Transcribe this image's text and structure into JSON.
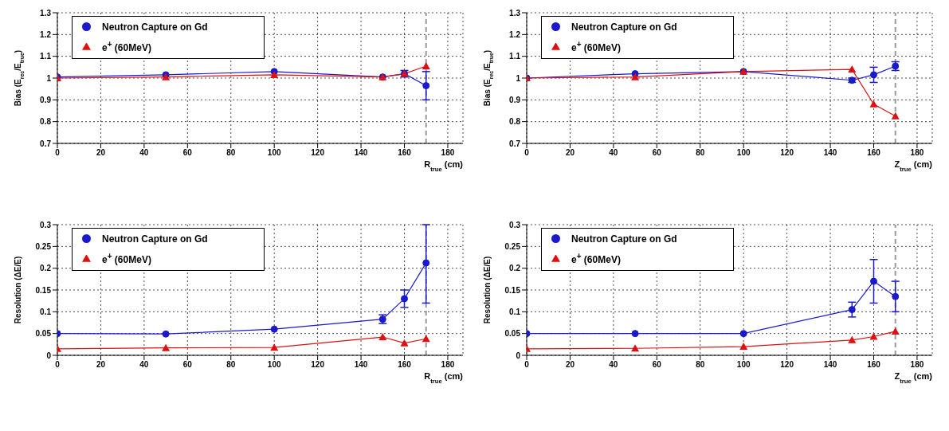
{
  "chart_data": [
    {
      "type": "line",
      "xlabel": "R$_{true}$ (cm)",
      "ylabel": "Bias (E$_{rec}$/E$_{true}$)",
      "x": [
        0,
        50,
        100,
        150,
        160,
        170
      ],
      "xlim": [
        0,
        187
      ],
      "xticks": [
        0,
        20,
        40,
        60,
        80,
        100,
        120,
        140,
        160,
        180
      ],
      "ylim": [
        0.7,
        1.3
      ],
      "yticks": [
        0.7,
        0.8,
        0.9,
        1,
        1.1,
        1.2,
        1.3
      ],
      "grid": true,
      "legend": "top left",
      "line_style": "solid",
      "ref_lines": [
        {
          "axis": "x",
          "value": 170,
          "color": "#999999",
          "line_style": "dashed"
        }
      ],
      "series": [
        {
          "name": "Neutron Capture on Gd",
          "color": "#1a1acc",
          "marker": "circle",
          "values": [
            1.005,
            1.015,
            1.03,
            1.005,
            1.02,
            0.965
          ],
          "errors": [
            null,
            null,
            null,
            null,
            0.015,
            [
              0.9,
              1.03
            ]
          ]
        },
        {
          "name": "e$^{+}$ (60MeV)",
          "color": "#dd1111",
          "marker": "triangle",
          "values": [
            1.0,
            1.005,
            1.015,
            1.005,
            1.02,
            1.055
          ]
        }
      ]
    },
    {
      "type": "line",
      "xlabel": "Z$_{true}$ (cm)",
      "ylabel": "Bias (E$_{rec}$/E$_{true}$)",
      "x": [
        0,
        50,
        100,
        150,
        160,
        170
      ],
      "xlim": [
        0,
        187
      ],
      "xticks": [
        0,
        20,
        40,
        60,
        80,
        100,
        120,
        140,
        160,
        180
      ],
      "ylim": [
        0.7,
        1.3
      ],
      "yticks": [
        0.7,
        0.8,
        0.9,
        1,
        1.1,
        1.2,
        1.3
      ],
      "grid": true,
      "legend": "top left",
      "line_style": "solid",
      "ref_lines": [
        {
          "axis": "x",
          "value": 170,
          "color": "#999999",
          "line_style": "dashed"
        }
      ],
      "series": [
        {
          "name": "Neutron Capture on Gd",
          "color": "#1a1acc",
          "marker": "circle",
          "values": [
            1.0,
            1.02,
            1.03,
            0.99,
            1.015,
            1.055
          ],
          "errors": [
            null,
            null,
            null,
            0.01,
            0.035,
            0.02
          ]
        },
        {
          "name": "e$^{+}$ (60MeV)",
          "color": "#dd1111",
          "marker": "triangle",
          "values": [
            1.0,
            1.005,
            1.03,
            1.04,
            0.88,
            0.825
          ]
        }
      ]
    },
    {
      "type": "line",
      "xlabel": "R$_{true}$ (cm)",
      "ylabel": "Resolution (ΔE/E)",
      "x": [
        0,
        50,
        100,
        150,
        160,
        170
      ],
      "xlim": [
        0,
        187
      ],
      "xticks": [
        0,
        20,
        40,
        60,
        80,
        100,
        120,
        140,
        160,
        180
      ],
      "ylim": [
        0,
        0.3
      ],
      "yticks": [
        0,
        0.05,
        0.1,
        0.15,
        0.2,
        0.25,
        0.3
      ],
      "grid": true,
      "legend": "top left",
      "line_style": "solid",
      "ref_lines": [
        {
          "axis": "x",
          "value": 170,
          "color": "#999999",
          "line_style": "dashed"
        }
      ],
      "series": [
        {
          "name": "Neutron Capture on Gd",
          "color": "#1a1acc",
          "marker": "circle",
          "values": [
            0.05,
            0.049,
            0.06,
            0.083,
            0.13,
            0.212
          ],
          "errors": [
            null,
            null,
            null,
            0.01,
            0.02,
            [
              0.12,
              0.3
            ]
          ]
        },
        {
          "name": "e$^{+}$ (60MeV)",
          "color": "#dd1111",
          "marker": "triangle",
          "values": [
            0.015,
            0.017,
            0.018,
            0.042,
            0.028,
            0.038
          ]
        }
      ]
    },
    {
      "type": "line",
      "xlabel": "Z$_{true}$ (cm)",
      "ylabel": "Resolution (ΔE/E)",
      "x": [
        0,
        50,
        100,
        150,
        160,
        170
      ],
      "xlim": [
        0,
        187
      ],
      "xticks": [
        0,
        20,
        40,
        60,
        80,
        100,
        120,
        140,
        160,
        180
      ],
      "ylim": [
        0,
        0.3
      ],
      "yticks": [
        0,
        0.05,
        0.1,
        0.15,
        0.2,
        0.25,
        0.3
      ],
      "grid": true,
      "legend": "top left",
      "line_style": "solid",
      "ref_lines": [
        {
          "axis": "x",
          "value": 170,
          "color": "#999999",
          "line_style": "dashed"
        }
      ],
      "series": [
        {
          "name": "Neutron Capture on Gd",
          "color": "#1a1acc",
          "marker": "circle",
          "values": [
            0.05,
            0.05,
            0.05,
            0.105,
            0.17,
            0.135
          ],
          "errors": [
            null,
            null,
            null,
            0.017,
            [
              0.12,
              0.22
            ],
            [
              0.1,
              0.17
            ]
          ]
        },
        {
          "name": "e$^{+}$ (60MeV)",
          "color": "#dd1111",
          "marker": "triangle",
          "values": [
            0.015,
            0.016,
            0.02,
            0.035,
            0.043,
            0.055
          ]
        }
      ]
    }
  ]
}
